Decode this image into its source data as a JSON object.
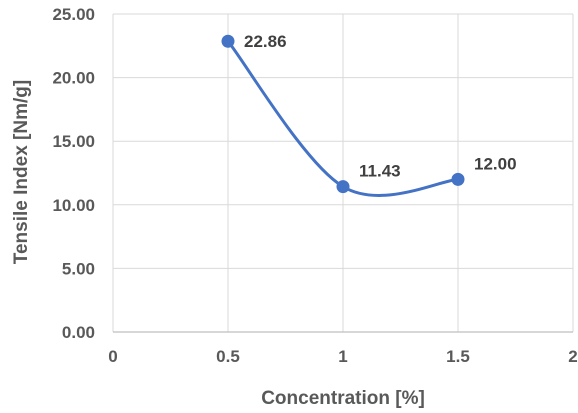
{
  "chart_data": {
    "type": "scatter",
    "title": "",
    "xlabel": "Concentration [%]",
    "ylabel": "Tensile Index [Nm/g]",
    "xlim": [
      0,
      2
    ],
    "ylim": [
      0,
      25
    ],
    "x_ticks": [
      "0",
      "0.5",
      "1",
      "1.5",
      "2"
    ],
    "y_ticks": [
      "0.00",
      "5.00",
      "10.00",
      "15.00",
      "20.00",
      "25.00"
    ],
    "grid": true,
    "legend": "none",
    "smoothed_line": true,
    "series": [
      {
        "color": "#4472c4",
        "points": [
          {
            "x": 0.5,
            "y": 22.86,
            "label": "22.86"
          },
          {
            "x": 1,
            "y": 11.43,
            "label": "11.43"
          },
          {
            "x": 1.5,
            "y": 12.0,
            "label": "12.00"
          }
        ]
      }
    ]
  }
}
